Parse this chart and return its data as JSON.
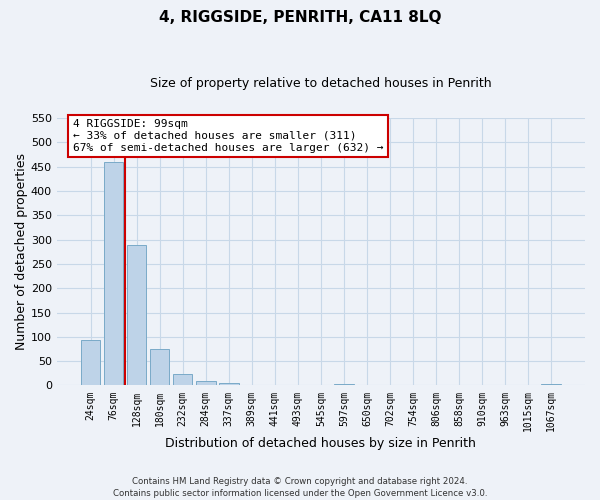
{
  "title": "4, RIGGSIDE, PENRITH, CA11 8LQ",
  "subtitle": "Size of property relative to detached houses in Penrith",
  "xlabel": "Distribution of detached houses by size in Penrith",
  "ylabel": "Number of detached properties",
  "bar_labels": [
    "24sqm",
    "76sqm",
    "128sqm",
    "180sqm",
    "232sqm",
    "284sqm",
    "337sqm",
    "389sqm",
    "441sqm",
    "493sqm",
    "545sqm",
    "597sqm",
    "650sqm",
    "702sqm",
    "754sqm",
    "806sqm",
    "858sqm",
    "910sqm",
    "963sqm",
    "1015sqm",
    "1067sqm"
  ],
  "bar_values": [
    93,
    460,
    288,
    76,
    24,
    10,
    5,
    0,
    0,
    0,
    0,
    3,
    0,
    0,
    0,
    0,
    0,
    0,
    0,
    0,
    2
  ],
  "bar_color": "#bed3e8",
  "bar_edge_color": "#7aaac8",
  "grid_color": "#c8d8e8",
  "background_color": "#eef2f8",
  "vline_color": "#cc0000",
  "annotation_text": "4 RIGGSIDE: 99sqm\n← 33% of detached houses are smaller (311)\n67% of semi-detached houses are larger (632) →",
  "annotation_box_color": "#ffffff",
  "annotation_box_edge_color": "#cc0000",
  "ylim": [
    0,
    550
  ],
  "yticks": [
    0,
    50,
    100,
    150,
    200,
    250,
    300,
    350,
    400,
    450,
    500,
    550
  ],
  "footer_text": "Contains HM Land Registry data © Crown copyright and database right 2024.\nContains public sector information licensed under the Open Government Licence v3.0.",
  "figsize": [
    6.0,
    5.0
  ],
  "dpi": 100
}
